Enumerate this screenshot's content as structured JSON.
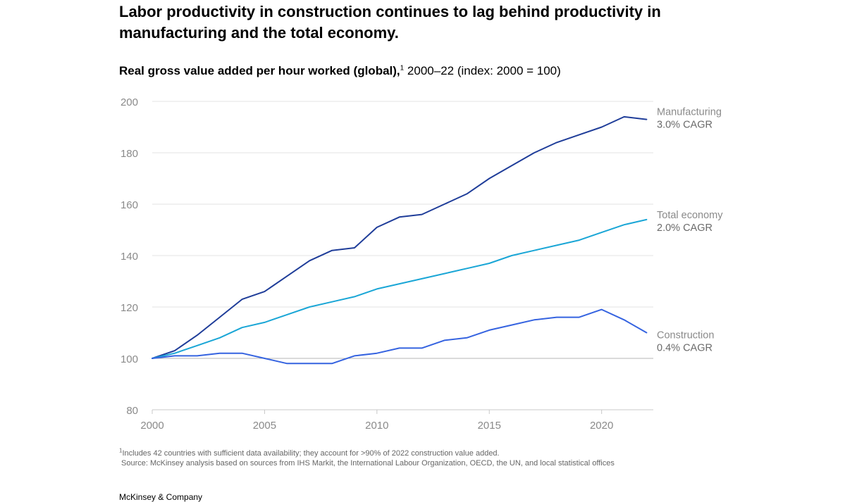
{
  "title": "Labor productivity in construction continues to lag behind productivity in manufacturing and the total economy.",
  "subtitle": {
    "bold": "Real gross value added per hour worked (global),",
    "sup": "1",
    "rest": " 2000–22 (index: 2000 = 100)"
  },
  "footnote": {
    "sup": "1",
    "text": "Includes 42 countries with sufficient data availability; they account for >90% of 2022 construction value added.",
    "source": "Source: McKinsey analysis based on sources from IHS Markit, the International Labour Organization, OECD, the UN, and local statistical offices"
  },
  "brand": "McKinsey & Company",
  "chart_data": {
    "type": "line",
    "x": [
      2000,
      2001,
      2002,
      2003,
      2004,
      2005,
      2006,
      2007,
      2008,
      2009,
      2010,
      2011,
      2012,
      2013,
      2014,
      2015,
      2016,
      2017,
      2018,
      2019,
      2020,
      2021,
      2022
    ],
    "xticks": [
      2000,
      2005,
      2010,
      2015,
      2020
    ],
    "yticks": [
      80,
      100,
      120,
      140,
      160,
      180,
      200
    ],
    "xlim": [
      2000,
      2022.3
    ],
    "ylim": [
      80,
      200
    ],
    "baseline": 100,
    "grid": true,
    "series": [
      {
        "name": "Manufacturing",
        "cagr": "3.0% CAGR",
        "color": "#1f3d99",
        "values": [
          100,
          103,
          109,
          116,
          123,
          126,
          132,
          138,
          142,
          143,
          151,
          155,
          156,
          160,
          164,
          170,
          175,
          180,
          184,
          187,
          190,
          194,
          193
        ]
      },
      {
        "name": "Total economy",
        "cagr": "2.0% CAGR",
        "color": "#1aa6d6",
        "values": [
          100,
          102,
          105,
          108,
          112,
          114,
          117,
          120,
          122,
          124,
          127,
          129,
          131,
          133,
          135,
          137,
          140,
          142,
          144,
          146,
          149,
          152,
          154
        ]
      },
      {
        "name": "Construction",
        "cagr": "0.4% CAGR",
        "color": "#3563e0",
        "values": [
          100,
          101,
          101,
          102,
          102,
          100,
          98,
          98,
          98,
          101,
          102,
          104,
          104,
          107,
          108,
          111,
          113,
          115,
          116,
          116,
          119,
          115,
          110
        ]
      }
    ]
  }
}
